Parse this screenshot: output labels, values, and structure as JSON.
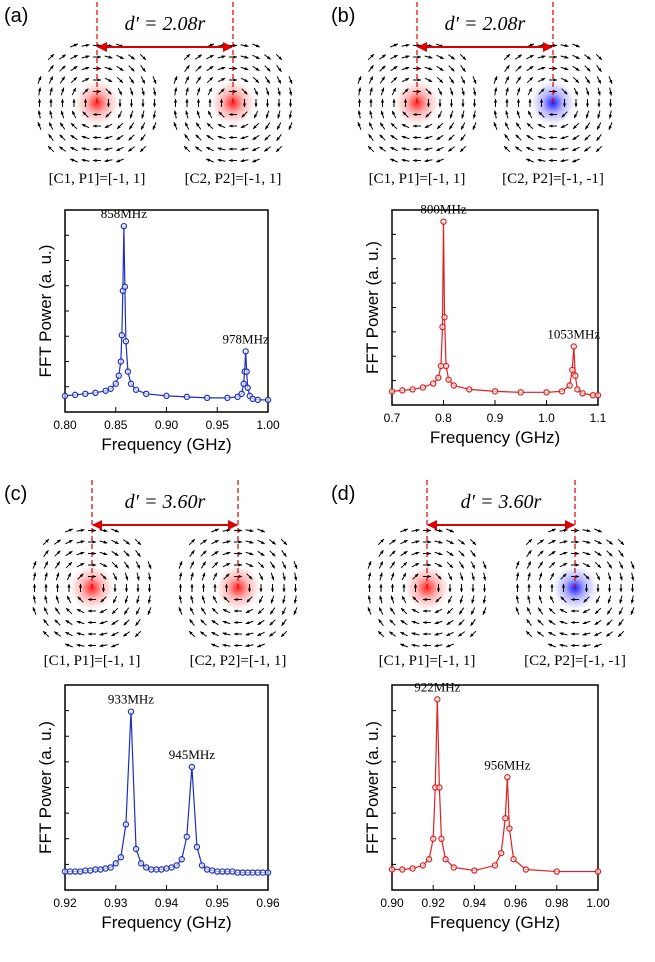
{
  "chart_data": [
    {
      "type": "line",
      "panel_label": "(a)",
      "distance": "d′ = 2.08r",
      "vortex_labels": [
        "[C1, P1]=[-1, 1]",
        "[C2, P2]=[-1, 1]"
      ],
      "core_colors": [
        "#ff2020",
        "#ff2020"
      ],
      "xlabel": "Frequency (GHz)",
      "ylabel": "FFT Power (a. u.)",
      "color": "#1f2fc0",
      "annotations": [
        "858MHz",
        "978MHz"
      ],
      "x": [
        0.8,
        0.81,
        0.82,
        0.83,
        0.84,
        0.845,
        0.85,
        0.853,
        0.855,
        0.856,
        0.857,
        0.858,
        0.859,
        0.86,
        0.862,
        0.865,
        0.87,
        0.88,
        0.9,
        0.92,
        0.94,
        0.96,
        0.97,
        0.974,
        0.976,
        0.977,
        0.978,
        0.979,
        0.98,
        0.982,
        0.985,
        0.99,
        1.0
      ],
      "values": [
        0.08,
        0.085,
        0.09,
        0.095,
        0.105,
        0.115,
        0.14,
        0.18,
        0.25,
        0.38,
        0.6,
        0.92,
        0.62,
        0.35,
        0.2,
        0.14,
        0.11,
        0.09,
        0.08,
        0.075,
        0.07,
        0.07,
        0.075,
        0.09,
        0.14,
        0.2,
        0.3,
        0.2,
        0.12,
        0.08,
        0.065,
        0.06,
        0.06
      ],
      "xlim": [
        0.8,
        1.0
      ],
      "ylim": [
        0,
        1
      ],
      "xticks": [
        {
          "value": 0.8,
          "label": "0.80"
        },
        {
          "value": 0.85,
          "label": "0.85"
        },
        {
          "value": 0.9,
          "label": "0.90"
        },
        {
          "value": 0.95,
          "label": "0.95"
        },
        {
          "value": 1.0,
          "label": "1.00"
        }
      ]
    },
    {
      "type": "line",
      "panel_label": "(b)",
      "distance": "d′ = 2.08r",
      "vortex_labels": [
        "[C1, P1]=[-1, 1]",
        "[C2, P2]=[-1, -1]"
      ],
      "core_colors": [
        "#ff2020",
        "#2020ff"
      ],
      "xlabel": "Frequency (GHz)",
      "ylabel": "FFT Power (a. u.)",
      "color": "#e02020",
      "annotations": [
        "800MHz",
        "1053MHz"
      ],
      "x": [
        0.7,
        0.72,
        0.74,
        0.76,
        0.78,
        0.79,
        0.795,
        0.798,
        0.8,
        0.802,
        0.805,
        0.81,
        0.82,
        0.85,
        0.9,
        0.95,
        1.0,
        1.03,
        1.045,
        1.05,
        1.053,
        1.056,
        1.06,
        1.07,
        1.09,
        1.1
      ],
      "values": [
        0.07,
        0.075,
        0.08,
        0.09,
        0.11,
        0.14,
        0.2,
        0.4,
        0.94,
        0.45,
        0.2,
        0.13,
        0.1,
        0.08,
        0.07,
        0.065,
        0.065,
        0.07,
        0.1,
        0.18,
        0.3,
        0.15,
        0.08,
        0.06,
        0.05,
        0.05
      ],
      "xlim": [
        0.7,
        1.1
      ],
      "ylim": [
        0,
        1
      ],
      "xticks": [
        0.7,
        0.8,
        0.9,
        {
          "value": 1.0,
          "label": "1.0"
        },
        1.1
      ]
    },
    {
      "type": "line",
      "panel_label": "(c)",
      "distance": "d′ = 3.60r",
      "vortex_labels": [
        "[C1, P1]=[-1, 1]",
        "[C2, P2]=[-1, 1]"
      ],
      "core_colors": [
        "#ff2020",
        "#ff2020"
      ],
      "xlabel": "Frequency (GHz)",
      "ylabel": "FFT Power (a. u.)",
      "color": "#1f2fc0",
      "annotations": [
        "933MHz",
        "945MHz"
      ],
      "x": [
        0.92,
        0.921,
        0.922,
        0.923,
        0.924,
        0.925,
        0.926,
        0.927,
        0.928,
        0.929,
        0.93,
        0.931,
        0.932,
        0.933,
        0.934,
        0.935,
        0.936,
        0.937,
        0.938,
        0.939,
        0.94,
        0.941,
        0.942,
        0.943,
        0.944,
        0.945,
        0.946,
        0.947,
        0.948,
        0.949,
        0.95,
        0.951,
        0.952,
        0.953,
        0.954,
        0.955,
        0.956,
        0.957,
        0.958,
        0.959,
        0.96
      ],
      "values": [
        0.09,
        0.09,
        0.09,
        0.09,
        0.095,
        0.095,
        0.1,
        0.1,
        0.105,
        0.11,
        0.13,
        0.16,
        0.32,
        0.87,
        0.2,
        0.13,
        0.11,
        0.1,
        0.1,
        0.1,
        0.105,
        0.11,
        0.12,
        0.15,
        0.26,
        0.6,
        0.21,
        0.12,
        0.1,
        0.095,
        0.09,
        0.09,
        0.09,
        0.09,
        0.085,
        0.085,
        0.085,
        0.085,
        0.085,
        0.085,
        0.085
      ],
      "xlim": [
        0.92,
        0.96
      ],
      "ylim": [
        0,
        1
      ],
      "xticks": [
        0.92,
        0.93,
        0.94,
        0.95,
        0.96
      ]
    },
    {
      "type": "line",
      "panel_label": "(d)",
      "distance": "d′ = 3.60r",
      "vortex_labels": [
        "[C1, P1]=[-1, 1]",
        "[C2, P2]=[-1, -1]"
      ],
      "core_colors": [
        "#ff2020",
        "#2020ff"
      ],
      "xlabel": "Frequency (GHz)",
      "ylabel": "FFT Power (a. u.)",
      "color": "#e02020",
      "annotations": [
        "922MHz",
        "956MHz"
      ],
      "x": [
        0.9,
        0.905,
        0.91,
        0.915,
        0.918,
        0.92,
        0.921,
        0.922,
        0.923,
        0.924,
        0.926,
        0.93,
        0.94,
        0.95,
        0.953,
        0.955,
        0.956,
        0.957,
        0.959,
        0.965,
        0.98,
        1.0
      ],
      "values": [
        0.1,
        0.1,
        0.105,
        0.12,
        0.15,
        0.25,
        0.5,
        0.93,
        0.5,
        0.25,
        0.15,
        0.11,
        0.095,
        0.12,
        0.18,
        0.35,
        0.55,
        0.3,
        0.15,
        0.1,
        0.09,
        0.09
      ],
      "xlim": [
        0.9,
        1.0
      ],
      "ylim": [
        0,
        1
      ],
      "xticks": [
        {
          "value": 0.9,
          "label": "0.90"
        },
        0.92,
        0.94,
        0.96,
        0.98,
        {
          "value": 1.0,
          "label": "1.00"
        }
      ]
    }
  ]
}
